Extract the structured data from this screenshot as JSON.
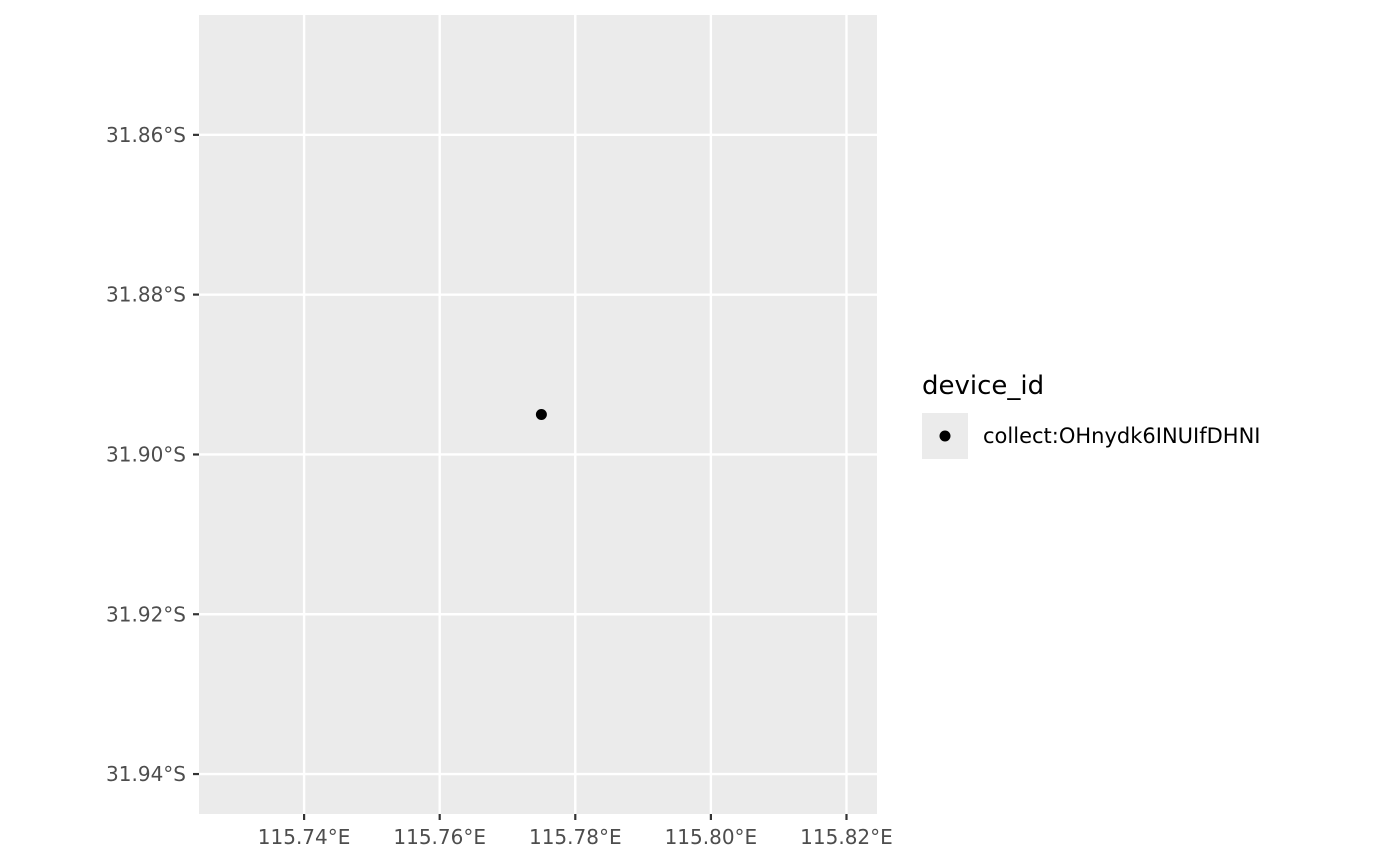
{
  "chart_data": {
    "type": "scatter",
    "title": "",
    "xlabel": "",
    "ylabel": "",
    "xlim": [
      115.7245,
      115.8245
    ],
    "ylim": [
      -31.945,
      -31.845
    ],
    "x_ticks": [
      115.74,
      115.76,
      115.78,
      115.8,
      115.82
    ],
    "x_tick_labels": [
      "115.74°E",
      "115.76°E",
      "115.78°E",
      "115.80°E",
      "115.82°E"
    ],
    "y_ticks": [
      -31.86,
      -31.88,
      -31.9,
      -31.92,
      -31.94
    ],
    "y_tick_labels": [
      "31.86°S",
      "31.88°S",
      "31.90°S",
      "31.92°S",
      "31.94°S"
    ],
    "grid": true,
    "legend": {
      "title": "device_id",
      "position": "right",
      "entries": [
        "collect:OHnydk6INUIfDHNI"
      ]
    },
    "series": [
      {
        "name": "collect:OHnydk6INUIfDHNI",
        "color": "#000000",
        "points": [
          {
            "x": 115.775,
            "y": -31.895
          }
        ]
      }
    ],
    "colors": {
      "panel_background": "#ebebeb",
      "grid": "#ffffff",
      "tick": "#333333",
      "tick_label": "#4d4d4d"
    }
  }
}
